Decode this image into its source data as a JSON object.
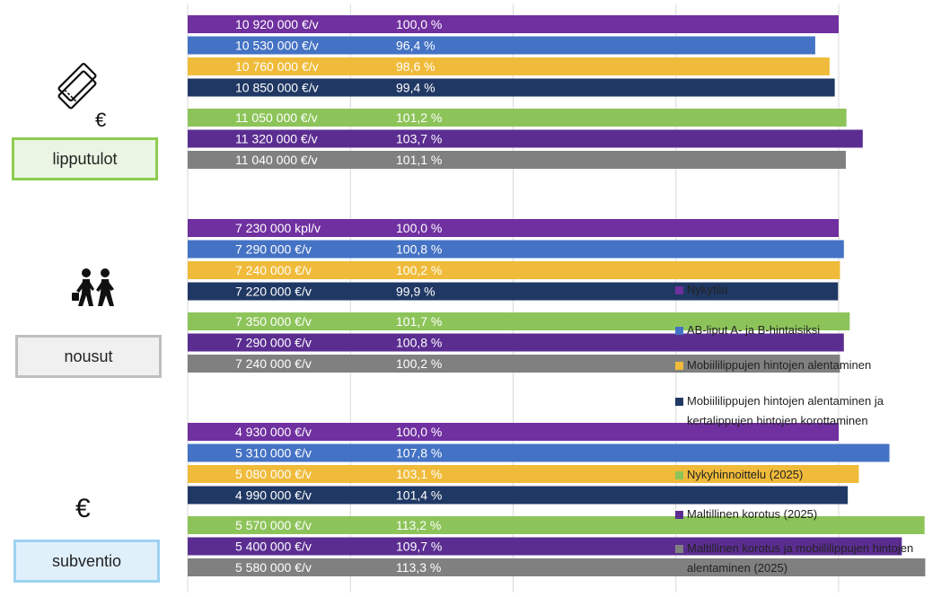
{
  "colors": {
    "nykytila": "#7030a0",
    "ab_liput": "#4472c4",
    "mobiili": "#f0bb3a",
    "mobiili_kerta": "#203864",
    "nykyhinnoittelu": "#8dc45a",
    "maltillinen": "#5b2d91",
    "maltillinen_mobiili": "#808080",
    "gridline": "#d9d9d9"
  },
  "section_labels": {
    "tickets": "lipputulot",
    "boardings": "nousut",
    "subsidy": "subventio"
  },
  "icons": {
    "tickets": "ticket-euro-icon",
    "boardings": "walking-people-icon",
    "subsidy": "euro-icon",
    "euro_symbol": "€"
  },
  "legend": [
    {
      "label": "Nykytila",
      "color": "#7030a0"
    },
    {
      "label": "AB-liput A- ja B-hintaisiksi",
      "color": "#4472c4"
    },
    {
      "label": "Mobiililippujen hintojen alentaminen",
      "color": "#f0bb3a"
    },
    {
      "label": "Mobiililippujen hintojen alentaminen ja kertalippujen hintojen korottaminen",
      "color": "#203864"
    },
    {
      "label": "Nykyhinnoittelu (2025)",
      "color": "#8dc45a"
    },
    {
      "label": "Maltillinen korotus (2025)",
      "color": "#5b2d91"
    },
    {
      "label": "Maltillinen korotus ja mobiililippujen hintojen alentaminen (2025)",
      "color": "#808080"
    }
  ],
  "chart_data": {
    "type": "bar",
    "orientation": "horizontal",
    "grid": true,
    "x_unit": "percent of baseline",
    "xlim": [
      0,
      150
    ],
    "legend_position": "right",
    "series": [
      "Nykytila",
      "AB-liput A- ja B-hintaisiksi",
      "Mobiililippujen hintojen alentaminen",
      "Mobiililippujen hintojen alentaminen ja kertalippujen hintojen korottaminen",
      "Nykyhinnoittelu (2025)",
      "Maltillinen korotus (2025)",
      "Maltillinen korotus ja mobiililippujen hintojen alentaminen (2025)"
    ],
    "groups": [
      {
        "category": "lipputulot",
        "bars": [
          {
            "value_label": "10 920 000 €/v",
            "percent_label": "100,0 %",
            "percent": 100.0
          },
          {
            "value_label": "10 530 000 €/v",
            "percent_label": "96,4 %",
            "percent": 96.4
          },
          {
            "value_label": "10 760 000 €/v",
            "percent_label": "98,6 %",
            "percent": 98.6
          },
          {
            "value_label": "10 850 000 €/v",
            "percent_label": "99,4 %",
            "percent": 99.4
          },
          {
            "value_label": "11 050 000 €/v",
            "percent_label": "101,2 %",
            "percent": 101.2
          },
          {
            "value_label": "11 320 000 €/v",
            "percent_label": "103,7 %",
            "percent": 103.7
          },
          {
            "value_label": "11 040 000 €/v",
            "percent_label": "101,1 %",
            "percent": 101.1
          }
        ]
      },
      {
        "category": "nousut",
        "bars": [
          {
            "value_label": "7 230 000 kpl/v",
            "percent_label": "100,0 %",
            "percent": 100.0
          },
          {
            "value_label": "7 290 000 €/v",
            "percent_label": "100,8 %",
            "percent": 100.8
          },
          {
            "value_label": "7 240 000 €/v",
            "percent_label": "100,2 %",
            "percent": 100.2
          },
          {
            "value_label": "7 220 000 €/v",
            "percent_label": "99,9 %",
            "percent": 99.9
          },
          {
            "value_label": "7 350 000 €/v",
            "percent_label": "101,7 %",
            "percent": 101.7
          },
          {
            "value_label": "7 290 000 €/v",
            "percent_label": "100,8 %",
            "percent": 100.8
          },
          {
            "value_label": "7 240 000 €/v",
            "percent_label": "100,2 %",
            "percent": 100.2
          }
        ]
      },
      {
        "category": "subventio",
        "bars": [
          {
            "value_label": "4 930 000 €/v",
            "percent_label": "100,0 %",
            "percent": 100.0
          },
          {
            "value_label": "5 310 000 €/v",
            "percent_label": "107,8 %",
            "percent": 107.8
          },
          {
            "value_label": "5 080 000 €/v",
            "percent_label": "103,1 %",
            "percent": 103.1
          },
          {
            "value_label": "4 990 000 €/v",
            "percent_label": "101,4 %",
            "percent": 101.4
          },
          {
            "value_label": "5 570 000 €/v",
            "percent_label": "113,2 %",
            "percent": 113.2
          },
          {
            "value_label": "5 400 000 €/v",
            "percent_label": "109,7 %",
            "percent": 109.7
          },
          {
            "value_label": "5 580 000 €/v",
            "percent_label": "113,3 %",
            "percent": 113.3
          }
        ]
      }
    ]
  }
}
